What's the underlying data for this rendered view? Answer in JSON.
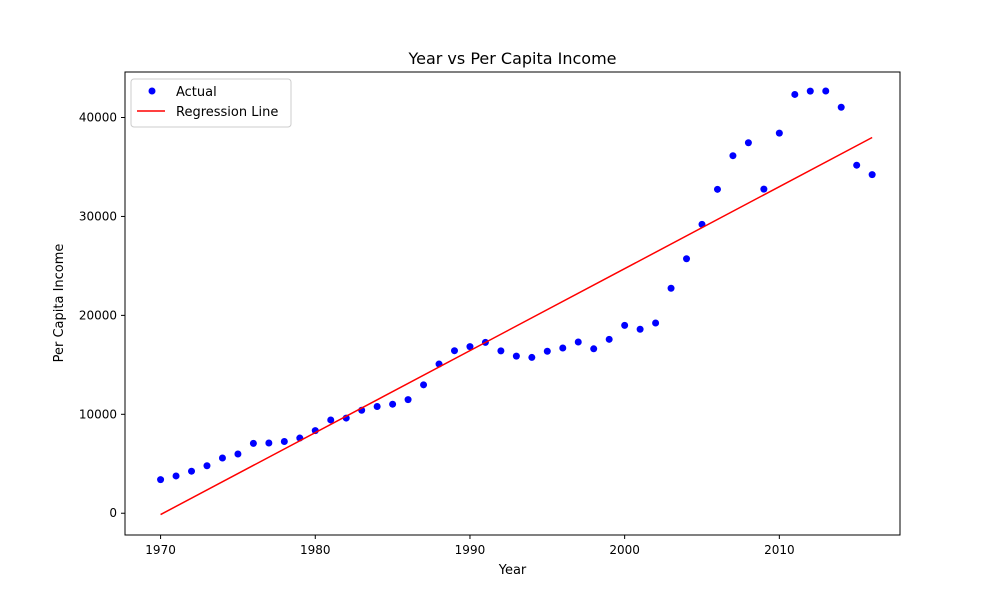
{
  "chart_data": {
    "type": "scatter",
    "title": "Year vs Per Capita Income",
    "xlabel": "Year",
    "ylabel": "Per Capita Income",
    "xlim": [
      1967.7,
      2017.8
    ],
    "ylim": [
      -2200,
      44600
    ],
    "x_ticks": [
      1970,
      1980,
      1990,
      2000,
      2010
    ],
    "y_ticks": [
      0,
      10000,
      20000,
      30000,
      40000
    ],
    "grid": false,
    "legend_position": "top-left",
    "series": [
      {
        "name": "Actual",
        "kind": "scatter",
        "color": "#0000ff",
        "points": [
          [
            1970,
            3400
          ],
          [
            1971,
            3770
          ],
          [
            1972,
            4250
          ],
          [
            1973,
            4800
          ],
          [
            1974,
            5580
          ],
          [
            1975,
            5990
          ],
          [
            1976,
            7060
          ],
          [
            1977,
            7100
          ],
          [
            1978,
            7250
          ],
          [
            1979,
            7600
          ],
          [
            1980,
            8350
          ],
          [
            1981,
            9430
          ],
          [
            1982,
            9620
          ],
          [
            1983,
            10410
          ],
          [
            1984,
            10790
          ],
          [
            1985,
            11020
          ],
          [
            1986,
            11480
          ],
          [
            1987,
            12980
          ],
          [
            1988,
            15080
          ],
          [
            1989,
            16430
          ],
          [
            1990,
            16840
          ],
          [
            1991,
            17270
          ],
          [
            1992,
            16410
          ],
          [
            1993,
            15880
          ],
          [
            1994,
            15750
          ],
          [
            1995,
            16370
          ],
          [
            1996,
            16700
          ],
          [
            1997,
            17310
          ],
          [
            1998,
            16620
          ],
          [
            1999,
            17580
          ],
          [
            2000,
            18990
          ],
          [
            2001,
            18600
          ],
          [
            2002,
            19230
          ],
          [
            2003,
            22740
          ],
          [
            2004,
            25720
          ],
          [
            2005,
            29200
          ],
          [
            2006,
            32740
          ],
          [
            2007,
            36140
          ],
          [
            2008,
            37450
          ],
          [
            2009,
            32760
          ],
          [
            2010,
            38420
          ],
          [
            2011,
            42330
          ],
          [
            2012,
            42670
          ],
          [
            2013,
            42680
          ],
          [
            2014,
            41040
          ],
          [
            2015,
            35180
          ],
          [
            2016,
            34230
          ]
        ]
      },
      {
        "name": "Regression Line",
        "kind": "line",
        "color": "#ff0000",
        "points": [
          [
            1970,
            -134
          ],
          [
            2016,
            37980
          ]
        ]
      }
    ]
  }
}
